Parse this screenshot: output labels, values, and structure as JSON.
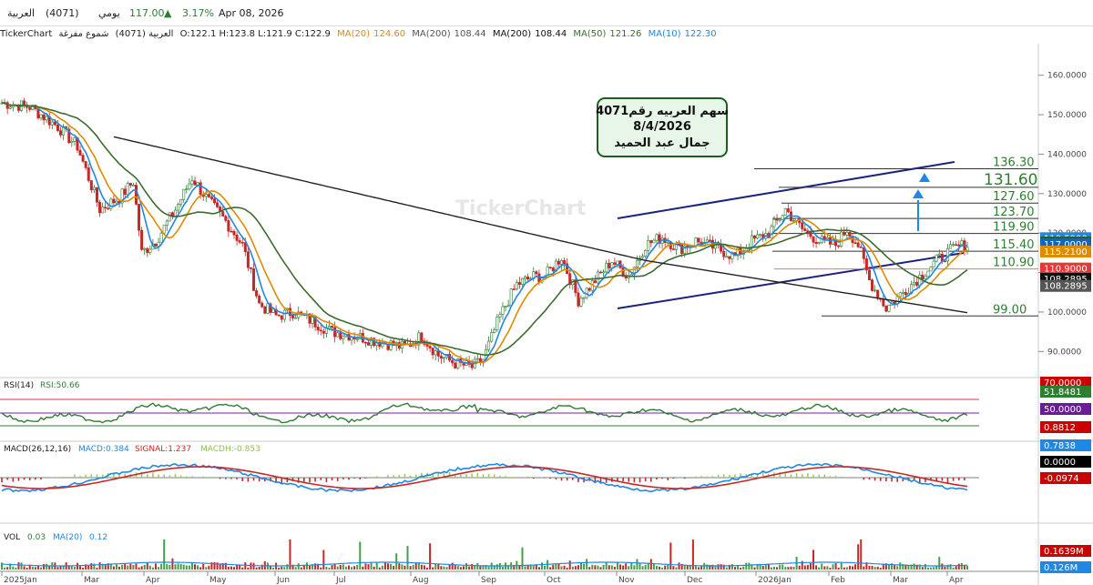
{
  "header": {
    "name": "العربية",
    "code": "(4071)",
    "period": "يومي",
    "price": "117.00",
    "change_pct": "3.17%",
    "date": "Apr 08, 2026"
  },
  "infobar": {
    "brand": "TickerChart",
    "symbol": "العربية (4071)",
    "chart_kind": "شموع مفرغة",
    "ohlc": "O:122.1  H:123.8  L:121.9  C:122.9",
    "ma20_label": "MA(20)",
    "ma20_value": "124.60",
    "ma200a_label": "MA(200)",
    "ma200a_value": "108.44",
    "ma200b_label": "MA(200)",
    "ma200b_value": "108.44",
    "ma50_label": "MA(50)",
    "ma50_value": "121.26",
    "ma10_label": "MA(10)",
    "ma10_value": "122.30"
  },
  "annotation": {
    "line1": "سهم العربيه رقم4071",
    "line2": "8/4/2026",
    "line3": "جمال عبد الحميد"
  },
  "watermark": "TickerChart",
  "levels": [
    {
      "label": "136.30",
      "value": 136.3
    },
    {
      "label": "131.60",
      "value": 131.6
    },
    {
      "label": "127.60",
      "value": 127.6
    },
    {
      "label": "123.70",
      "value": 123.7
    },
    {
      "label": "119.90",
      "value": 119.9
    },
    {
      "label": "115.40",
      "value": 115.4
    },
    {
      "label": "110.90",
      "value": 110.9
    },
    {
      "label": "99.00",
      "value": 99.0
    }
  ],
  "right_badges": [
    {
      "label": "118.5900",
      "value": 118.59,
      "color": "#1e88e5"
    },
    {
      "label": "117.5080",
      "value": 117.508,
      "color": "#2e5d2a"
    },
    {
      "label": "117.0000",
      "value": 117.0,
      "color": "#1565c0"
    },
    {
      "label": "115.2100",
      "value": 115.21,
      "color": "#e08a00"
    },
    {
      "label": "110.9000",
      "value": 110.9,
      "color": "#e53935"
    },
    {
      "label": "108.2895",
      "value": 108.2895,
      "color": "#111111"
    },
    {
      "label": "108.2895",
      "value": 106.5,
      "color": "#555555"
    }
  ],
  "rsi_panel": {
    "label": "RSI(14)",
    "value_text": "RSI:50.66",
    "badges": [
      {
        "label": "70.0000",
        "color": "#cc0000"
      },
      {
        "label": "51.8481",
        "color": "#2e7d32"
      },
      {
        "label": "50.0000",
        "color": "#6a1b9a"
      },
      {
        "label": "0.8812",
        "color": "#cc0000"
      }
    ]
  },
  "macd_panel": {
    "label": "MACD(26,12,16)",
    "macd_text": "MACD:0.384",
    "signal_text": "SIGNAL:1.237",
    "macdh_text": "MACDH:-0.853",
    "badges": [
      {
        "label": "0.7838",
        "color": "#1e88e5"
      },
      {
        "label": "0.0000",
        "color": "#000000"
      },
      {
        "label": "-0.0974",
        "color": "#cc0000"
      }
    ]
  },
  "vol_panel": {
    "label": "VOL",
    "vol_text": "0.03",
    "ma_label": "MA(20)",
    "ma_text": "0.12",
    "badges": [
      {
        "label": "0.1639M",
        "color": "#cc0000"
      },
      {
        "label": "0.126M",
        "color": "#1e88e5"
      }
    ]
  },
  "chart_data": {
    "type": "candlestick",
    "title": "",
    "y_ticks": [
      90,
      100,
      110,
      120,
      130,
      140,
      150,
      160
    ],
    "ylim": [
      85,
      168
    ],
    "x_labels": [
      "2025Jan",
      "Mar",
      "Apr",
      "May",
      "Jun",
      "Jul",
      "Aug",
      "Sep",
      "Oct",
      "Nov",
      "Dec",
      "2026Jan",
      "Feb",
      "Mar",
      "Apr"
    ],
    "close_path": [
      [
        0,
        153
      ],
      [
        10,
        152
      ],
      [
        20,
        147
      ],
      [
        27,
        142
      ],
      [
        35,
        126
      ],
      [
        42,
        129
      ],
      [
        47,
        133
      ],
      [
        50,
        115
      ],
      [
        55,
        118
      ],
      [
        62,
        126
      ],
      [
        68,
        134
      ],
      [
        74,
        128
      ],
      [
        80,
        123
      ],
      [
        86,
        117
      ],
      [
        92,
        102
      ],
      [
        98,
        99
      ],
      [
        104,
        100
      ],
      [
        110,
        98
      ],
      [
        118,
        95
      ],
      [
        126,
        94
      ],
      [
        132,
        93
      ],
      [
        138,
        92
      ],
      [
        144,
        91
      ],
      [
        150,
        94
      ],
      [
        156,
        89
      ],
      [
        162,
        87
      ],
      [
        168,
        86
      ],
      [
        172,
        88
      ],
      [
        178,
        99
      ],
      [
        184,
        107
      ],
      [
        190,
        109
      ],
      [
        194,
        109
      ],
      [
        200,
        114
      ],
      [
        206,
        103
      ],
      [
        212,
        108
      ],
      [
        218,
        113
      ],
      [
        224,
        109
      ],
      [
        230,
        117
      ],
      [
        236,
        119
      ],
      [
        242,
        116
      ],
      [
        248,
        118
      ],
      [
        256,
        116
      ],
      [
        262,
        114
      ],
      [
        268,
        118
      ],
      [
        274,
        120
      ],
      [
        280,
        126
      ],
      [
        286,
        121
      ],
      [
        292,
        118
      ],
      [
        298,
        117
      ],
      [
        302,
        121
      ],
      [
        306,
        117
      ],
      [
        310,
        108
      ],
      [
        316,
        101
      ],
      [
        322,
        105
      ],
      [
        328,
        109
      ],
      [
        334,
        113
      ],
      [
        340,
        116
      ],
      [
        344,
        117
      ]
    ],
    "ma_fast_color": "#1e88e5",
    "ma_mid_color": "#e08a00",
    "ma_slow_color": "#3d6b2f",
    "ma_long_color": "#222222"
  }
}
